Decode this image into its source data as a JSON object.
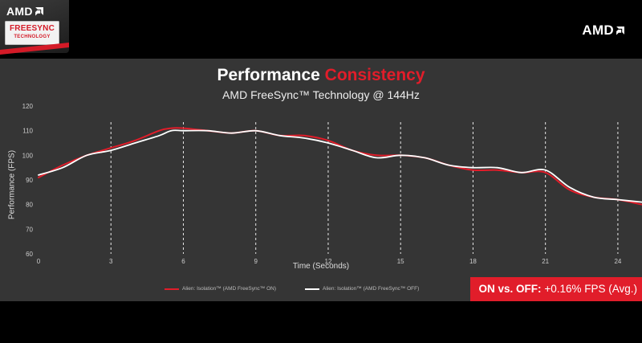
{
  "header": {
    "badge_brand": "AMD",
    "badge_line1": "FREESYNC",
    "badge_line2": "TECHNOLOGY",
    "logo_text": "AMD"
  },
  "callout": {
    "label": "ON vs. OFF:",
    "value": "+0.16% FPS (Avg.)"
  },
  "chart_data": {
    "type": "line",
    "title_part1": "Performance",
    "title_part2": "Consistency",
    "subtitle": "AMD FreeSync™ Technology @ 144Hz",
    "xlabel": "Time (Seconds)",
    "ylabel": "Performance (FPS)",
    "xlim": [
      0,
      25
    ],
    "ylim": [
      60,
      120
    ],
    "xticks": [
      0,
      3,
      6,
      9,
      12,
      15,
      18,
      21,
      24
    ],
    "yticks": [
      60,
      70,
      80,
      90,
      100,
      110,
      120
    ],
    "grid": "vertical dashed at x ticks",
    "legend_position": "bottom-center",
    "series": [
      {
        "name": "Alien: Isolation™ (AMD FreeSync™ ON)",
        "color": "#e11d2a",
        "x": [
          0,
          1,
          2,
          3,
          4,
          5,
          5.5,
          6,
          7,
          8,
          9,
          10,
          11,
          12,
          13,
          14,
          15,
          16,
          17,
          18,
          19,
          20,
          21,
          22,
          23,
          24,
          25
        ],
        "y": [
          91,
          96,
          100,
          103,
          106,
          110,
          111,
          111,
          110,
          109,
          110,
          108,
          108,
          106,
          102,
          100,
          100,
          99,
          96,
          94,
          94,
          93,
          93,
          86,
          83,
          82,
          80
        ]
      },
      {
        "name": "Alien: Isolation™ (AMD FreeSync™ OFF)",
        "color": "#ffffff",
        "x": [
          0,
          1,
          2,
          3,
          4,
          5,
          5.5,
          6,
          7,
          8,
          9,
          10,
          11,
          12,
          13,
          14,
          15,
          16,
          17,
          18,
          19,
          20,
          21,
          22,
          23,
          24,
          25
        ],
        "y": [
          92,
          95,
          100,
          102,
          105,
          108,
          110,
          110,
          110,
          109,
          110,
          108,
          107,
          105,
          102,
          99,
          100,
          99,
          96,
          95,
          95,
          93,
          94,
          87,
          83,
          82,
          81
        ]
      }
    ]
  }
}
